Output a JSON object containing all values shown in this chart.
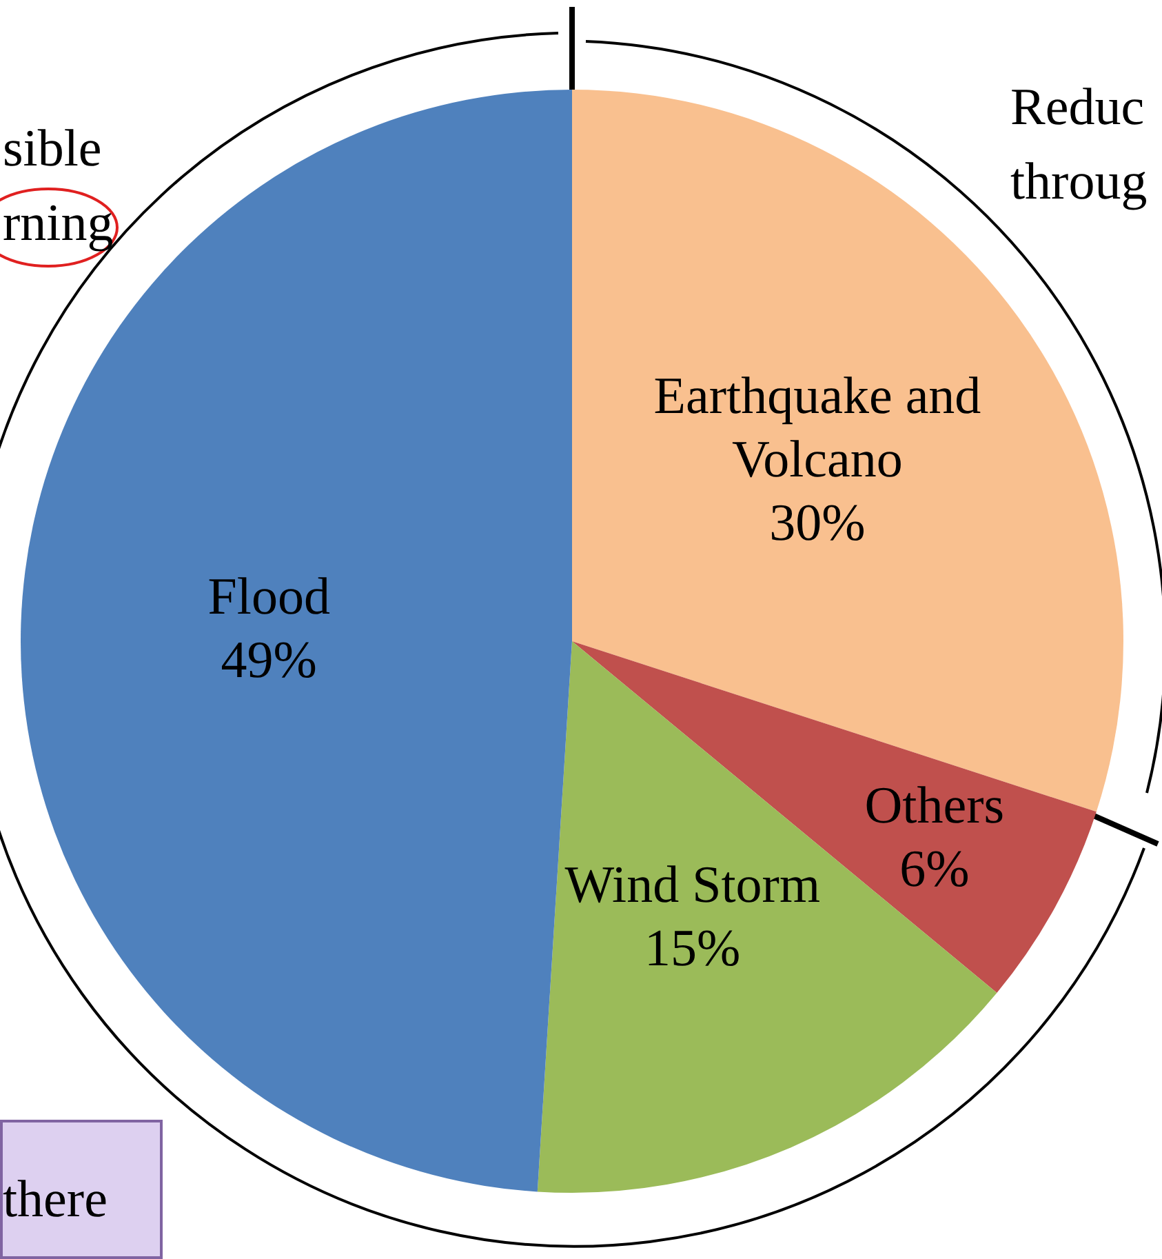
{
  "chart_data": {
    "type": "pie",
    "categories": [
      "Earthquake and Volcano",
      "Others",
      "Wind Storm",
      "Flood"
    ],
    "values": [
      30,
      6,
      15,
      49
    ],
    "colors": [
      "#f9c08f",
      "#c0504d",
      "#9bbb59",
      "#4f81bd"
    ],
    "value_labels": [
      "30%",
      "6%",
      "15%",
      "49%"
    ],
    "legend": false,
    "annotations": [
      "sible",
      "rning",
      "Reduc",
      "throug",
      "there"
    ]
  }
}
